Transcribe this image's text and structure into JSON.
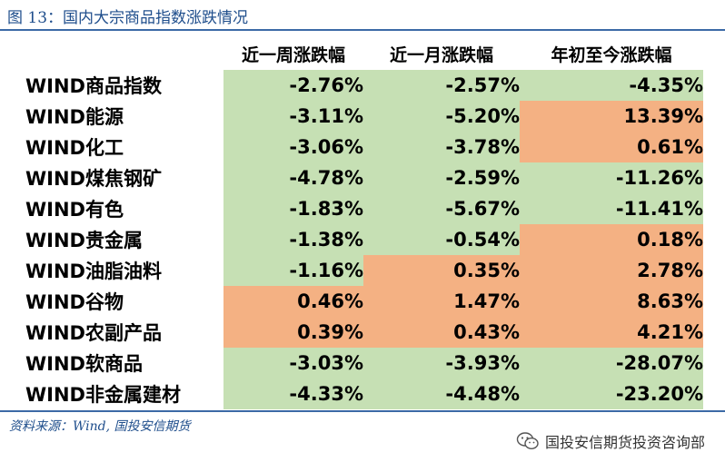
{
  "title": "图 13：国内大宗商品指数涨跌情况",
  "table": {
    "headers": [
      "",
      "近一周涨跌幅",
      "近一月涨跌幅",
      "年初至今涨跌幅"
    ],
    "rows": [
      {
        "name": "WIND商品指数",
        "week": "-2.76%",
        "month": "-2.57%",
        "ytd": "-4.35%"
      },
      {
        "name": "WIND能源",
        "week": "-3.11%",
        "month": "-5.20%",
        "ytd": "13.39%"
      },
      {
        "name": "WIND化工",
        "week": "-3.06%",
        "month": "-3.78%",
        "ytd": "0.61%"
      },
      {
        "name": "WIND煤焦钢矿",
        "week": "-4.78%",
        "month": "-2.59%",
        "ytd": "-11.26%"
      },
      {
        "name": "WIND有色",
        "week": "-1.83%",
        "month": "-5.67%",
        "ytd": "-11.41%"
      },
      {
        "name": "WIND贵金属",
        "week": "-1.38%",
        "month": "-0.54%",
        "ytd": "0.18%"
      },
      {
        "name": "WIND油脂油料",
        "week": "-1.16%",
        "month": "0.35%",
        "ytd": "2.78%"
      },
      {
        "name": "WIND谷物",
        "week": "0.46%",
        "month": "1.47%",
        "ytd": "8.63%"
      },
      {
        "name": "WIND农副产品",
        "week": "0.39%",
        "month": "0.43%",
        "ytd": "4.21%"
      },
      {
        "name": "WIND软商品",
        "week": "-3.03%",
        "month": "-3.93%",
        "ytd": "-28.07%"
      },
      {
        "name": "WIND非金属建材",
        "week": "-4.33%",
        "month": "-4.48%",
        "ytd": "-23.20%"
      }
    ]
  },
  "colors": {
    "decline": "#c6e0b4",
    "rise": "#f4b183",
    "accent": "#1f4e8c"
  },
  "source": "资料来源：Wind, 国投安信期货",
  "watermark": {
    "icon": "wechat-icon",
    "text": "国投安信期货投资咨询部"
  }
}
